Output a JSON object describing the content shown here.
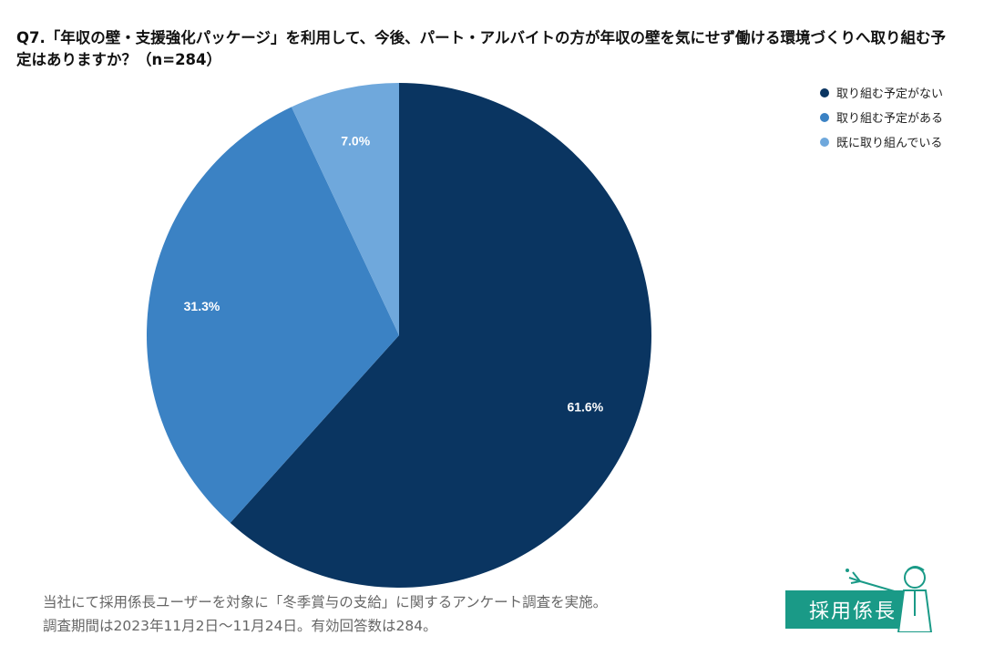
{
  "title": "Q7.「年収の壁・支援強化パッケージ」を利用して、今後、パート・アルバイトの方が年収の壁を気にせず働ける環境づくりへ取り組む予定はありますか？（n=284）",
  "chart_data": {
    "type": "pie",
    "start_angle_deg": 0,
    "direction": "clockwise",
    "slices": [
      {
        "label": "取り組む予定がない",
        "value": 61.6,
        "display": "61.6%",
        "color": "#0a3561"
      },
      {
        "label": "取り組む予定がある",
        "value": 31.3,
        "display": "31.3%",
        "color": "#3b82c4"
      },
      {
        "label": "既に取り組んでいる",
        "value": 7.0,
        "display": "7.0%",
        "color": "#6fa8dc"
      }
    ],
    "legend_position": "top-right"
  },
  "footer": {
    "line1": "当社にて採用係長ユーザーを対象に「冬季賞与の支給」に関するアンケート調査を実施。",
    "line2": "調査期間は2023年11月2日〜11月24日。有効回答数は284。"
  },
  "logo": {
    "text": "採用係長"
  }
}
